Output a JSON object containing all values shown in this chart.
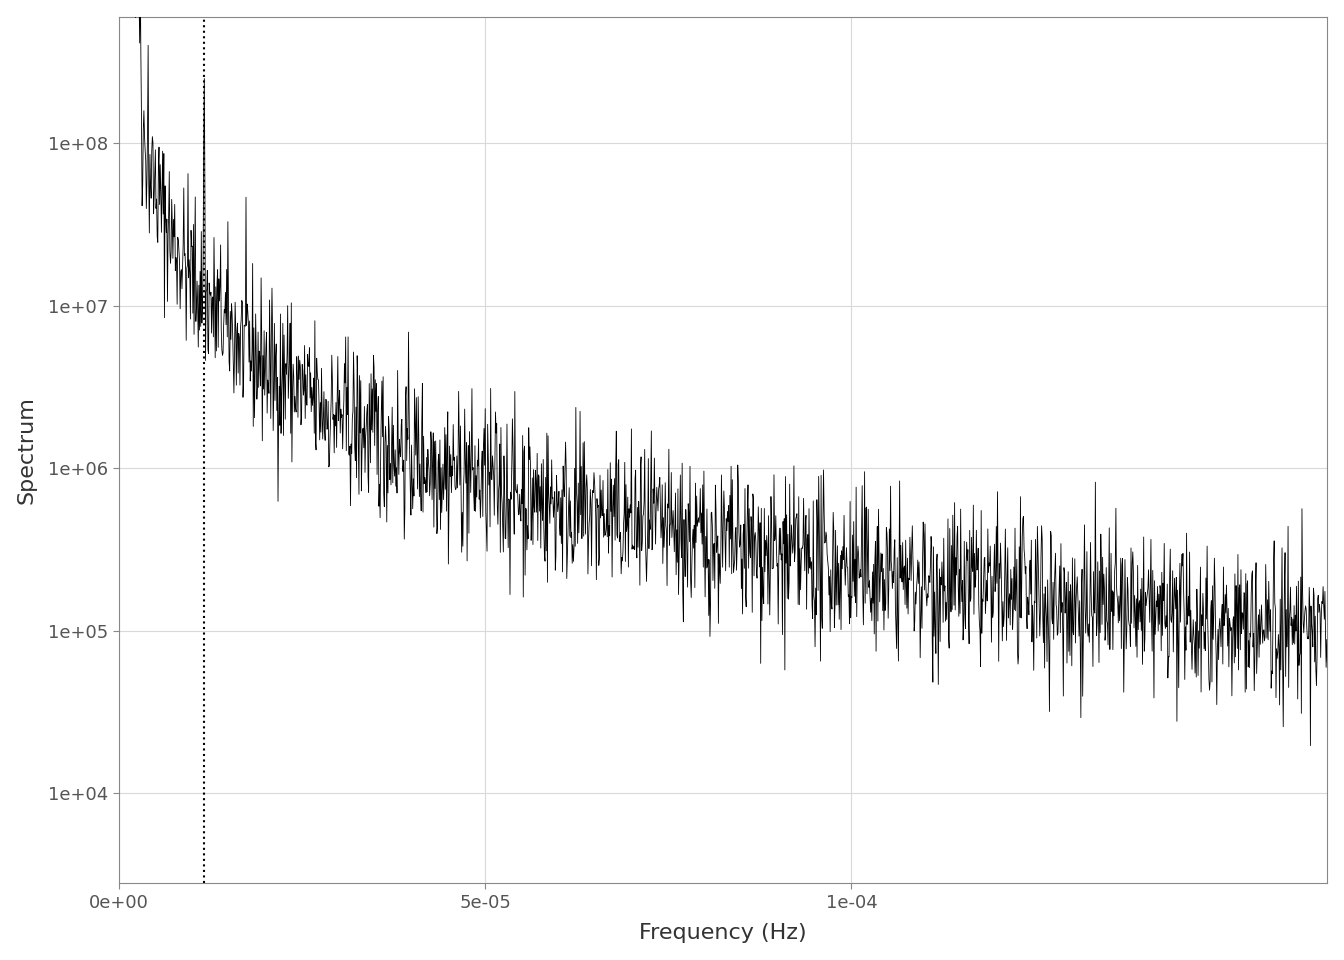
{
  "title": "",
  "xlabel": "Frequency (Hz)",
  "ylabel": "Spectrum",
  "xmin": 0,
  "xmax": 0.000165,
  "ymin": 2800,
  "ymax": 600000000.0,
  "vline_x": 1.157e-05,
  "xticks": [
    0,
    5e-05,
    0.0001
  ],
  "xtick_labels": [
    "0e+00",
    "5e-05",
    "1e-04"
  ],
  "yticks": [
    10000.0,
    100000.0,
    1000000.0,
    10000000.0,
    100000000.0
  ],
  "ytick_labels": [
    "1e+04",
    "1e+05",
    "1e+06",
    "1e+07",
    "1e+08"
  ],
  "line_color": "#000000",
  "vline_color": "#000000",
  "background_color": "#ffffff",
  "grid_color": "#d9d9d9",
  "seed": 42,
  "n_points": 2000,
  "noise_sigma": 0.55,
  "power_law_exp": 1.8,
  "xlabel_fontsize": 16,
  "ylabel_fontsize": 16,
  "tick_fontsize": 13,
  "panel_border_color": "#aaaaaa",
  "tick_label_color": "#555555"
}
